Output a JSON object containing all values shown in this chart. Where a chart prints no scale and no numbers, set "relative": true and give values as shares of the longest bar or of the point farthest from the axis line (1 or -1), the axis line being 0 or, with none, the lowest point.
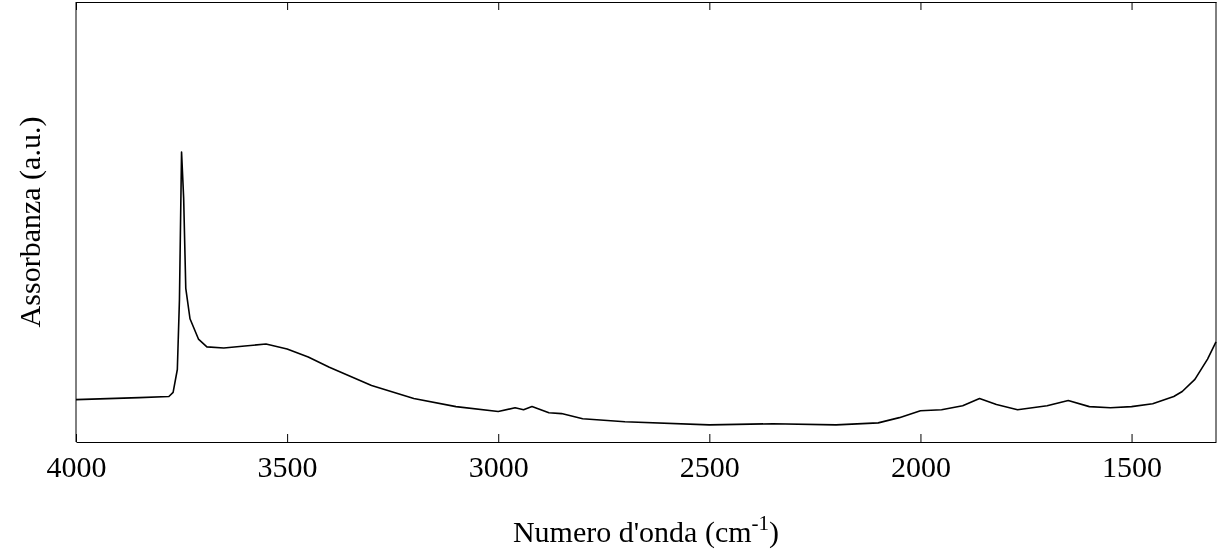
{
  "chart_data": {
    "type": "line",
    "xlabel": "Numero d'onda (cm$^{-1}$)",
    "ylabel": "Assorbanza (a.u.)",
    "relative": true,
    "xlim": [
      4000,
      1300
    ],
    "xticks": [
      4000,
      3500,
      3000,
      2500,
      2000,
      1500
    ],
    "tick_labels": "x",
    "grid": false,
    "series": [
      {
        "color": "#000000",
        "x": [
          4000,
          3850,
          3780,
          3770,
          3760,
          3755,
          3750,
          3745,
          3740,
          3730,
          3710,
          3690,
          3650,
          3600,
          3550,
          3500,
          3450,
          3400,
          3300,
          3200,
          3100,
          3000,
          2960,
          2940,
          2920,
          2880,
          2850,
          2800,
          2700,
          2500,
          2350,
          2200,
          2100,
          2050,
          2000,
          1950,
          1900,
          1860,
          1820,
          1770,
          1700,
          1650,
          1600,
          1550,
          1500,
          1450,
          1400,
          1380,
          1350,
          1320,
          1300
        ],
        "values": [
          0.146,
          0.153,
          0.157,
          0.171,
          0.25,
          0.49,
          1.0,
          0.84,
          0.53,
          0.425,
          0.355,
          0.328,
          0.324,
          0.331,
          0.338,
          0.321,
          0.293,
          0.258,
          0.195,
          0.15,
          0.122,
          0.105,
          0.118,
          0.111,
          0.122,
          0.101,
          0.098,
          0.08,
          0.07,
          0.059,
          0.063,
          0.059,
          0.066,
          0.084,
          0.108,
          0.111,
          0.125,
          0.15,
          0.129,
          0.111,
          0.125,
          0.143,
          0.122,
          0.118,
          0.122,
          0.132,
          0.157,
          0.174,
          0.216,
          0.286,
          0.345
        ]
      }
    ]
  }
}
